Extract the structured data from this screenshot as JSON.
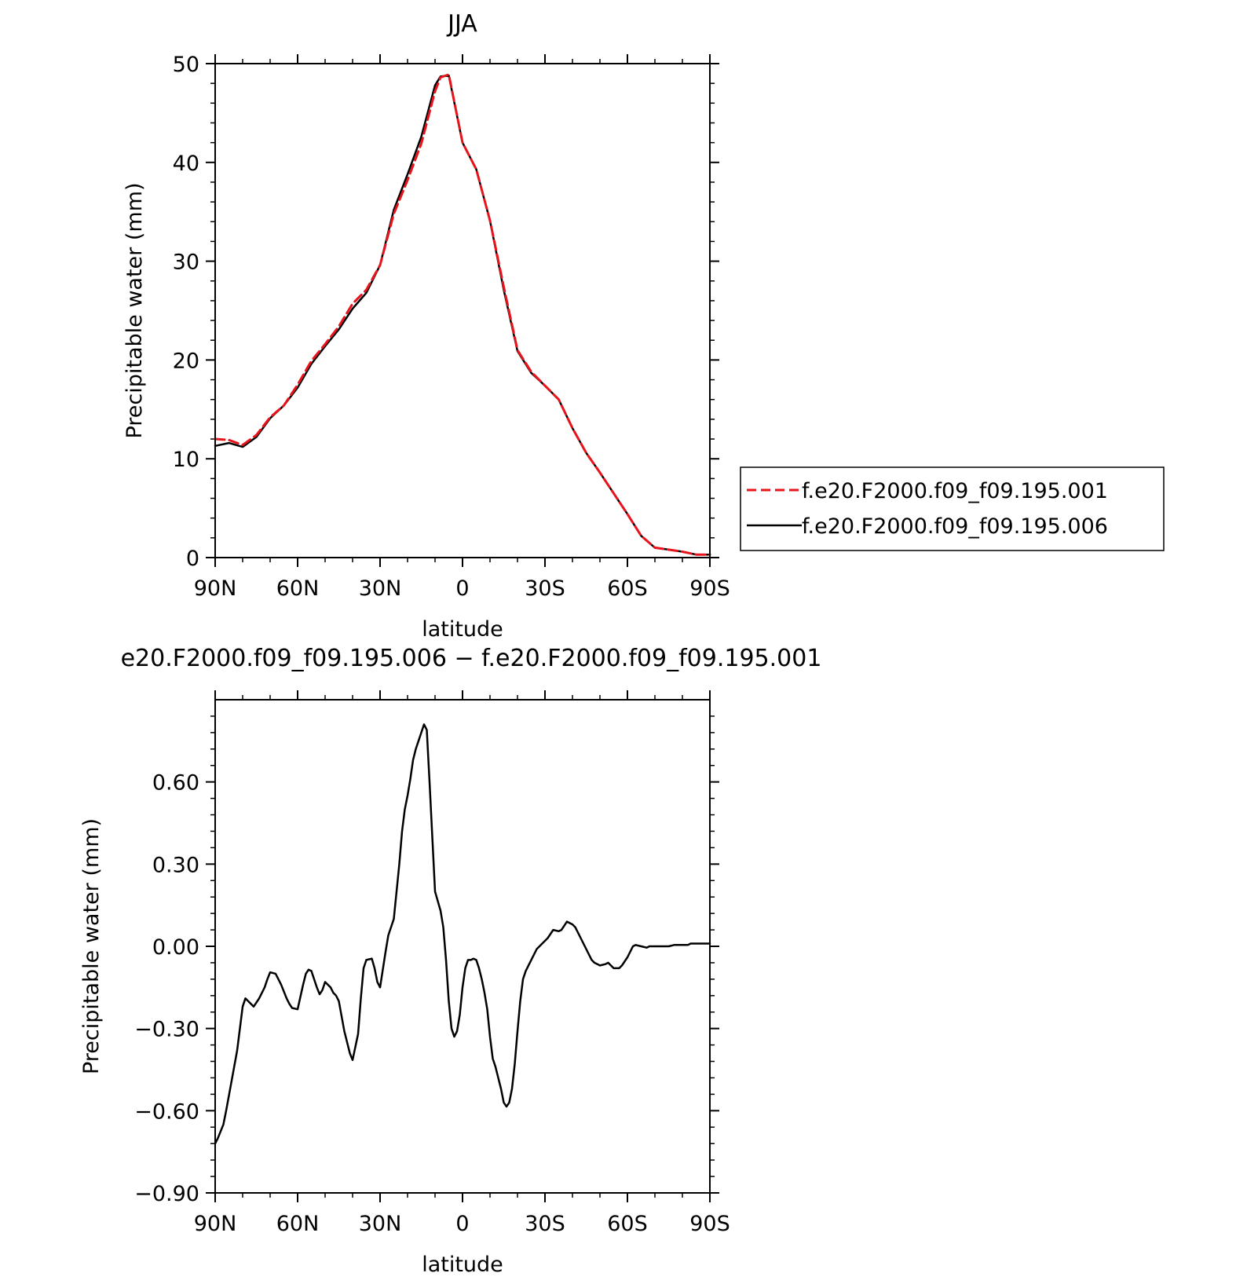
{
  "chart_data": [
    {
      "type": "line",
      "title": "JJA",
      "xlabel": "latitude",
      "ylabel": "Precipitable water (mm)",
      "xlim": [
        90,
        -90
      ],
      "ylim": [
        0,
        50
      ],
      "x_tick_values": [
        90,
        60,
        30,
        0,
        -30,
        -60,
        -90
      ],
      "x_tick_labels": [
        "90N",
        "60N",
        "30N",
        "0",
        "30S",
        "60S",
        "90S"
      ],
      "y_tick_values": [
        0,
        10,
        20,
        30,
        40,
        50
      ],
      "y_tick_labels": [
        "0",
        "10",
        "20",
        "30",
        "40",
        "50"
      ],
      "legend_position": "right",
      "series": [
        {
          "name": "f.e20.F2000.f09_f09.195.001",
          "color": "#e8141c",
          "dash": "dashed",
          "x": [
            90,
            85,
            80,
            75,
            70,
            65,
            60,
            55,
            50,
            45,
            40,
            35,
            30,
            25,
            20,
            15,
            10,
            8,
            5,
            0,
            -5,
            -10,
            -15,
            -20,
            -25,
            -30,
            -35,
            -40,
            -45,
            -50,
            -55,
            -60,
            -65,
            -70,
            -75,
            -80,
            -85,
            -90
          ],
          "y": [
            12.0,
            11.9,
            11.4,
            12.4,
            14.2,
            15.4,
            17.5,
            19.9,
            21.6,
            23.4,
            25.7,
            27.1,
            29.6,
            34.8,
            38.2,
            41.9,
            47.2,
            48.6,
            48.9,
            42.0,
            39.3,
            34.1,
            27.4,
            21.0,
            18.8,
            17.4,
            16.0,
            13.1,
            10.6,
            8.6,
            6.5,
            4.4,
            2.2,
            1.0,
            0.8,
            0.6,
            0.3,
            0.3
          ]
        },
        {
          "name": "f.e20.F2000.f09_f09.195.006",
          "color": "#000000",
          "dash": "solid",
          "x": [
            90,
            85,
            80,
            75,
            70,
            65,
            60,
            55,
            50,
            45,
            40,
            35,
            30,
            25,
            20,
            15,
            10,
            8,
            5,
            0,
            -5,
            -10,
            -15,
            -20,
            -25,
            -30,
            -35,
            -40,
            -45,
            -50,
            -55,
            -60,
            -65,
            -70,
            -75,
            -80,
            -85,
            -90
          ],
          "y": [
            11.3,
            11.6,
            11.2,
            12.2,
            14.1,
            15.4,
            17.2,
            19.6,
            21.4,
            23.1,
            25.2,
            26.8,
            29.6,
            35.2,
            38.8,
            42.6,
            47.8,
            48.7,
            48.8,
            42.0,
            39.3,
            34.1,
            27.1,
            20.9,
            18.7,
            17.4,
            16.0,
            13.1,
            10.6,
            8.6,
            6.5,
            4.4,
            2.2,
            1.0,
            0.8,
            0.6,
            0.3,
            0.3
          ]
        }
      ]
    },
    {
      "type": "line",
      "title": "e20.F2000.f09_f09.195.006 − f.e20.F2000.f09_f09.195.001",
      "xlabel": "latitude",
      "ylabel": "Precipitable water (mm)",
      "xlim": [
        90,
        -90
      ],
      "ylim": [
        -0.9,
        0.9
      ],
      "x_tick_values": [
        90,
        60,
        30,
        0,
        -30,
        -60,
        -90
      ],
      "x_tick_labels": [
        "90N",
        "60N",
        "30N",
        "0",
        "30S",
        "60S",
        "90S"
      ],
      "y_tick_values": [
        -0.9,
        -0.6,
        -0.3,
        0.0,
        0.3,
        0.6
      ],
      "y_tick_labels": [
        "−0.90",
        "−0.60",
        "−0.30",
        "0.00",
        "0.30",
        "0.60"
      ],
      "series": [
        {
          "color": "#000000",
          "x": [
            90,
            89,
            87,
            86,
            84,
            82,
            81,
            80,
            79,
            78,
            76,
            74,
            72,
            71,
            70,
            68,
            66,
            64,
            63,
            62,
            60,
            58,
            57,
            56,
            55,
            53,
            52,
            51,
            50,
            48,
            47,
            46,
            45,
            43,
            42,
            41,
            40,
            38,
            37,
            36,
            35,
            33,
            32,
            31,
            30,
            28,
            27,
            25,
            24,
            23,
            22,
            21,
            20,
            19,
            18,
            17,
            16,
            15,
            14,
            13,
            12,
            11,
            10,
            8,
            7,
            6,
            5,
            4,
            3,
            2,
            1,
            0,
            -1,
            -2,
            -3,
            -4,
            -5,
            -6,
            -7,
            -8,
            -9,
            -10,
            -11,
            -12,
            -13,
            -14,
            -15,
            -16,
            -17,
            -18,
            -19,
            -20,
            -21,
            -22,
            -23,
            -24,
            -25,
            -27,
            -28,
            -30,
            -31,
            -33,
            -35,
            -36,
            -38,
            -40,
            -41,
            -43,
            -45,
            -47,
            -48,
            -50,
            -52,
            -53,
            -55,
            -57,
            -58,
            -60,
            -62,
            -63,
            -65,
            -67,
            -68,
            -70,
            -72,
            -73,
            -75,
            -77,
            -78,
            -80,
            -82,
            -83,
            -85,
            -87,
            -88,
            -90
          ],
          "y": [
            -0.72,
            -0.7,
            -0.65,
            -0.6,
            -0.49,
            -0.38,
            -0.3,
            -0.22,
            -0.19,
            -0.2,
            -0.22,
            -0.19,
            -0.15,
            -0.12,
            -0.095,
            -0.1,
            -0.14,
            -0.19,
            -0.21,
            -0.225,
            -0.23,
            -0.14,
            -0.1,
            -0.085,
            -0.09,
            -0.15,
            -0.175,
            -0.16,
            -0.13,
            -0.15,
            -0.17,
            -0.18,
            -0.2,
            -0.31,
            -0.35,
            -0.39,
            -0.415,
            -0.32,
            -0.19,
            -0.08,
            -0.05,
            -0.045,
            -0.08,
            -0.13,
            -0.15,
            -0.02,
            0.04,
            0.1,
            0.2,
            0.3,
            0.42,
            0.5,
            0.55,
            0.61,
            0.68,
            0.72,
            0.75,
            0.78,
            0.81,
            0.79,
            0.6,
            0.4,
            0.2,
            0.13,
            0.07,
            -0.05,
            -0.2,
            -0.3,
            -0.33,
            -0.31,
            -0.25,
            -0.15,
            -0.08,
            -0.05,
            -0.05,
            -0.045,
            -0.05,
            -0.08,
            -0.12,
            -0.17,
            -0.23,
            -0.33,
            -0.41,
            -0.44,
            -0.48,
            -0.52,
            -0.57,
            -0.585,
            -0.57,
            -0.52,
            -0.43,
            -0.31,
            -0.2,
            -0.12,
            -0.09,
            -0.07,
            -0.05,
            -0.01,
            0.0,
            0.02,
            0.03,
            0.06,
            0.055,
            0.06,
            0.09,
            0.08,
            0.07,
            0.03,
            -0.01,
            -0.05,
            -0.06,
            -0.07,
            -0.065,
            -0.06,
            -0.08,
            -0.08,
            -0.07,
            -0.04,
            0.0,
            0.005,
            0.0,
            -0.005,
            0.0,
            0.0,
            0.0,
            0.0,
            0.0,
            0.005,
            0.005,
            0.005,
            0.005,
            0.01,
            0.01,
            0.01,
            0.01,
            0.01
          ]
        }
      ]
    }
  ]
}
